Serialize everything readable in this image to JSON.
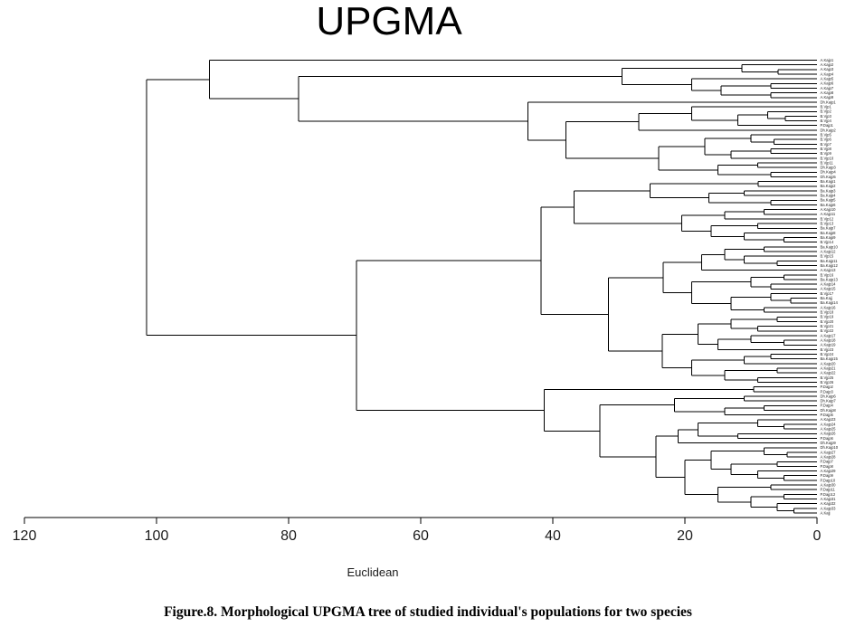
{
  "figure": {
    "title": "UPGMA",
    "caption": "Figure.8. Morphological UPGMA tree of studied individual's populations for two species"
  },
  "chart_data": {
    "type": "dendrogram",
    "orientation": "horizontal-right-to-left",
    "title": "UPGMA",
    "xlabel": "Euclidean",
    "x_axis": {
      "ticks": [
        120,
        100,
        80,
        60,
        40,
        20,
        0
      ],
      "range": [
        120,
        0
      ],
      "label": "Euclidean"
    },
    "distance_metric": "Euclidean",
    "root_height": 101.5,
    "leaf_count": 98,
    "grid": false,
    "line_color": "#000000",
    "tree": [
      [
        "A.Kajp1",
        [
          [
            [
              "A.Kajp2",
              [
                "A.Kajp3",
                "A.Kajp4",
                5.9
              ],
              11.4
            ],
            [
              "A.Kajp5",
              [
                [
                  "A.Kajp6",
                  "A.Kajp7",
                  7
                ],
                [
                  "A.Kajp8",
                  "A.Kajp9",
                  7
                ],
                14.5
              ],
              19
            ],
            29.5
          ],
          [
            "Dh.Kajp1",
            [
              [
                [
                  "B.Vjp1",
                  [
                    [
                      "B.Vjp2",
                      [
                        "B.Vjp3",
                        "B.Vjp4",
                        4.8
                      ],
                      7.5
                    ],
                    "P.Dajp1",
                    12
                  ],
                  19
                ],
                "Dh.Kajp2",
                27
              ],
              [
                [
                  [
                    "B.Vjp5",
                    [
                      "B.Vjp6",
                      "B.Vjp7",
                      6.5
                    ],
                    10
                  ],
                  [
                    [
                      "B.Vjp8",
                      "B.Vjp9",
                      7
                    ],
                    "B.Vjp10",
                    13
                  ],
                  17
                ],
                [
                  [
                    "B.Vjp11",
                    "Dh.Kajp3",
                    9
                  ],
                  [
                    "Dh.Kajp4",
                    "Dh.Kajp5",
                    7
                  ],
                  15
                ],
                24
              ],
              38
            ],
            43.8
          ],
          78.5
        ],
        92
      ],
      [
        [
          [
            [
              [
                "Ba.Kajp1",
                "Ba.Kajp2",
                8.9
              ],
              [
                [
                  "Ba.Kajp3",
                  "Ba.Kajp4",
                  11
                ],
                [
                  "Ba.Kajp5",
                  "Ba.Kajp6",
                  7
                ],
                16.4
              ],
              25.3
            ],
            [
              [
                [
                  "A.Kajp10",
                  "A.Kajp11",
                  8
                ],
                "B.Vjp12",
                14
              ],
              [
                [
                  "B.Vjp13",
                  "Ba.Kajp7",
                  9
                ],
                [
                  "Ba.Kajp8",
                  [
                    "Ba.Kajp9",
                    "B.Vjp14",
                    5
                  ],
                  11
                ],
                16
              ],
              20.5
            ],
            36.8
          ],
          [
            [
              [
                [
                  [
                    "Ba.Kajp10",
                    "A.Kajp12",
                    8
                  ],
                  [
                    "B.Vjp15",
                    [
                      "Ba.Kajp11",
                      "Ba.Kajp12",
                      6
                    ],
                    11
                  ],
                  14
                ],
                "A.Kajp13",
                17.5
              ],
              [
                [
                  [
                    "B.Vjp16",
                    "Ba.Kajp13",
                    5
                  ],
                  [
                    "A.Kajp14",
                    "A.Kajp15",
                    7
                  ],
                  10
                ],
                [
                  [
                    "B.Vjp17",
                    [
                      "Ba.Kajj",
                      "Ba.Kajp14",
                      4
                    ],
                    7
                  ],
                  [
                    "A.Kajp16",
                    "B.Vjp18",
                    8
                  ],
                  13
                ],
                19
              ],
              23.3
            ],
            [
              [
                [
                  [
                    "B.Vjp19",
                    "B.Vjp20",
                    6
                  ],
                  [
                    "B.Vjp21",
                    "B.Vjp22",
                    9
                  ],
                  13
                ],
                [
                  [
                    "A.Kajp17",
                    [
                      "A.Kajp18",
                      "A.Kajp19",
                      5
                    ],
                    10
                  ],
                  "B.Vjp23",
                  15
                ],
                18
              ],
              [
                [
                  [
                    "B.Vjp24",
                    "Ba.Kajp15",
                    7
                  ],
                  "A.Kajp20",
                  11
                ],
                [
                  [
                    "A.Kajp21",
                    "A.Kajp22",
                    6
                  ],
                  [
                    "B.Vjp25",
                    "B.Vjp26",
                    9
                  ],
                  14
                ],
                19
              ],
              23.4
            ],
            31.6
          ],
          41.8
        ],
        [
          [
            "P.Dajp2",
            "P.Dajp3",
            9.6
          ],
          [
            [
              [
                "Dh.Kajp6",
                "Dh.Kajp7",
                11
              ],
              [
                [
                  "P.Dajp4",
                  "Dh.Kajp8",
                  8
                ],
                "P.Dajp5",
                14
              ],
              21.6
            ],
            [
              [
                [
                  [
                    "A.Kajp23",
                    [
                      "A.Kajp24",
                      "A.Kajp25",
                      5
                    ],
                    9
                  ],
                  [
                    "A.Kajp26",
                    "P.Dajp6",
                    12
                  ],
                  18
                ],
                "Dh.Kajp9",
                21
              ],
              [
                [
                  [
                    "Dh.Kajp10",
                    [
                      "A.Kajp27",
                      "A.Kajp28",
                      4.5
                    ],
                    8
                  ],
                  [
                    [
                      "P.Dajp7",
                      "P.Dajp8",
                      6
                    ],
                    [
                      "A.Kajp29",
                      [
                        "P.Dajp9",
                        "P.Dajp10",
                        5
                      ],
                      9
                    ],
                    13
                  ],
                  16
                ],
                [
                  [
                    "A.Kajp30",
                    "P.Dajp11",
                    7
                  ],
                  [
                    [
                      "P.Dajp12",
                      "A.Kajp31",
                      5
                    ],
                    [
                      "A.Kajp32",
                      [
                        "A.Kajp33",
                        "A.Kajj",
                        3.5
                      ],
                      6
                    ],
                    10
                  ],
                  15
                ],
                20
              ],
              24.4
            ],
            32.9
          ],
          41.3
        ],
        69.7
      ],
      101.5
    ]
  }
}
